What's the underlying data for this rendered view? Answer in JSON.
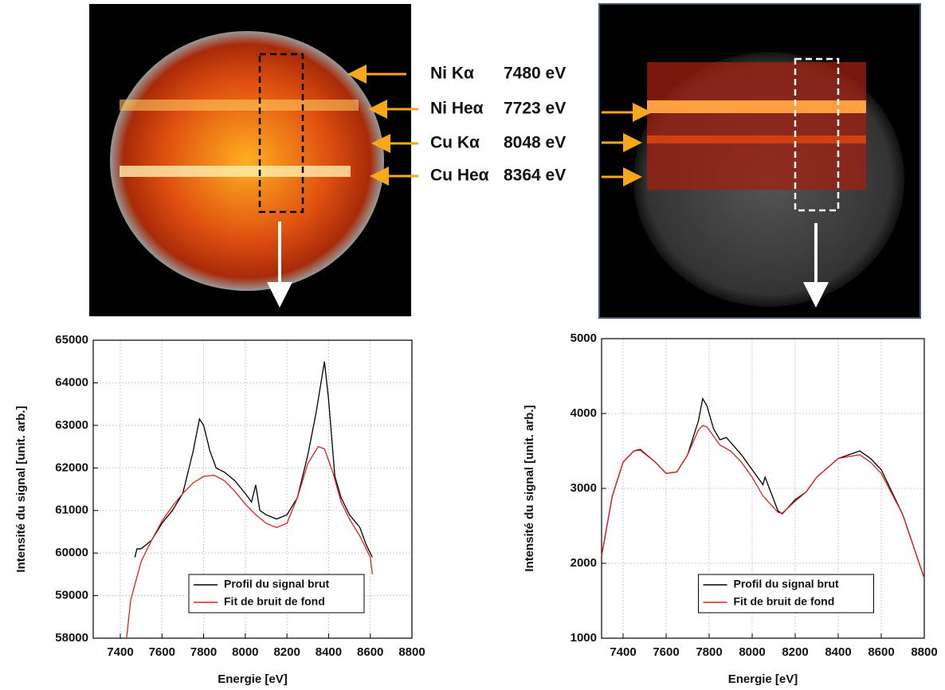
{
  "image_labels": [
    {
      "line": "Ni Kα",
      "energy": "7480 eV"
    },
    {
      "line": "Ni Heα",
      "energy": "7723 eV"
    },
    {
      "line": "Cu Kα",
      "energy": "8048 eV"
    },
    {
      "line": "Cu Heα",
      "energy": "8364 eV"
    }
  ],
  "chart_data": [
    {
      "type": "line",
      "x_label": "Energie [eV]",
      "y_label": "Intensité du signal [unit. arb.]",
      "xlim": [
        7270,
        8800
      ],
      "xticks": [
        7400,
        7600,
        7800,
        8000,
        8200,
        8400,
        8600,
        8800
      ],
      "ylim": [
        58000,
        65000
      ],
      "yticks": [
        58000,
        59000,
        60000,
        61000,
        62000,
        63000,
        64000,
        65000
      ],
      "grid": true,
      "legend": "lower right",
      "series": [
        {
          "name": "Profil du signal brut",
          "color": "#000000",
          "x": [
            7470,
            7480,
            7500,
            7550,
            7600,
            7650,
            7700,
            7750,
            7780,
            7800,
            7830,
            7860,
            7900,
            7950,
            8000,
            8030,
            8050,
            8070,
            8100,
            8150,
            8200,
            8250,
            8300,
            8340,
            8360,
            8380,
            8400,
            8430,
            8460,
            8500,
            8550,
            8580,
            8610
          ],
          "values": [
            59900,
            60100,
            60100,
            60300,
            60700,
            61000,
            61400,
            62400,
            63150,
            63000,
            62400,
            62000,
            61900,
            61700,
            61400,
            61200,
            61600,
            61000,
            60900,
            60800,
            60900,
            61300,
            62300,
            63300,
            63900,
            64500,
            63600,
            61800,
            61300,
            60900,
            60600,
            60200,
            59900
          ]
        },
        {
          "name": "Fit de bruit de fond",
          "color": "#e02020",
          "x": [
            7430,
            7450,
            7500,
            7550,
            7600,
            7650,
            7700,
            7750,
            7800,
            7850,
            7900,
            7950,
            8000,
            8050,
            8100,
            8150,
            8200,
            8250,
            8300,
            8350,
            8380,
            8420,
            8460,
            8500,
            8550,
            8600,
            8610
          ],
          "values": [
            58000,
            58900,
            59800,
            60300,
            60750,
            61100,
            61400,
            61650,
            61800,
            61830,
            61700,
            61450,
            61150,
            60900,
            60700,
            60600,
            60700,
            61300,
            62100,
            62500,
            62450,
            61900,
            61200,
            60800,
            60400,
            59900,
            59500
          ]
        }
      ]
    },
    {
      "type": "line",
      "x_label": "Energie [eV]",
      "y_label": "Intensité du signal [unit. arb.]",
      "xlim": [
        7300,
        8800
      ],
      "xticks": [
        7400,
        7600,
        7800,
        8000,
        8200,
        8400,
        8600,
        8800
      ],
      "ylim": [
        1000,
        5000
      ],
      "yticks": [
        1000,
        2000,
        3000,
        4000,
        5000
      ],
      "grid": true,
      "legend": "lower right",
      "series": [
        {
          "name": "Profil du signal brut",
          "color": "#000000",
          "x": [
            7300,
            7350,
            7400,
            7450,
            7480,
            7550,
            7600,
            7650,
            7700,
            7750,
            7770,
            7790,
            7820,
            7850,
            7880,
            7950,
            8000,
            8050,
            8060,
            8080,
            8120,
            8140,
            8200,
            8250,
            8300,
            8400,
            8500,
            8550,
            8600,
            8700,
            8800
          ],
          "values": [
            2100,
            2900,
            3350,
            3500,
            3520,
            3350,
            3200,
            3220,
            3450,
            3900,
            4200,
            4100,
            3800,
            3650,
            3680,
            3450,
            3250,
            3050,
            3150,
            3000,
            2700,
            2660,
            2850,
            2950,
            3150,
            3400,
            3500,
            3400,
            3250,
            2650,
            1800
          ]
        },
        {
          "name": "Fit de bruit de fond",
          "color": "#e02020",
          "x": [
            7300,
            7350,
            7400,
            7450,
            7480,
            7550,
            7600,
            7650,
            7700,
            7750,
            7770,
            7790,
            7820,
            7850,
            7900,
            7950,
            8000,
            8050,
            8120,
            8140,
            8200,
            8250,
            8300,
            8400,
            8500,
            8550,
            8600,
            8700,
            8800
          ],
          "values": [
            2100,
            2900,
            3350,
            3500,
            3510,
            3350,
            3200,
            3220,
            3450,
            3780,
            3840,
            3820,
            3700,
            3580,
            3500,
            3350,
            3150,
            2900,
            2680,
            2670,
            2830,
            2950,
            3150,
            3400,
            3450,
            3350,
            3200,
            2650,
            1800
          ]
        }
      ]
    }
  ]
}
